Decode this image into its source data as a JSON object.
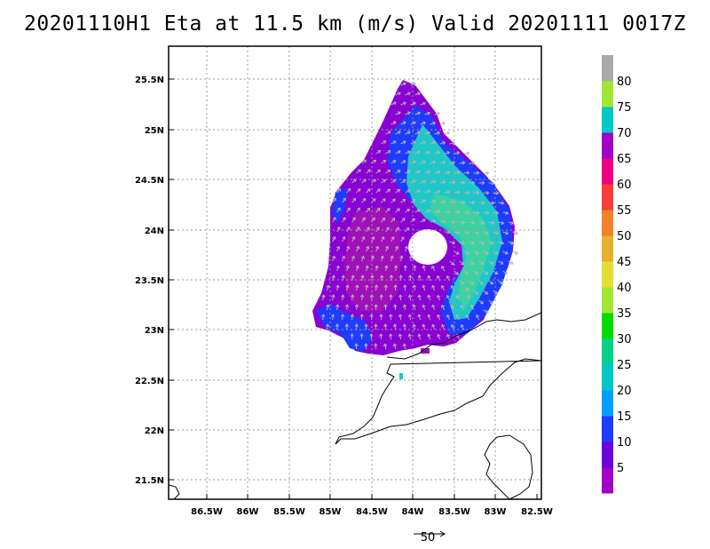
{
  "title": "20201110H1 Eta at 11.5 km (m/s) Valid 20201111 0017Z",
  "lon_labels": [
    "86.5W",
    "86W",
    "85.5W",
    "85W",
    "84.5W",
    "84W",
    "83.5W",
    "83W",
    "82.5W"
  ],
  "lat_labels": [
    "25.5N",
    "25N",
    "24.5N",
    "24N",
    "23.5N",
    "23N",
    "22.5N",
    "22N",
    "21.5N"
  ],
  "colorbar": {
    "labels": [
      "5",
      "10",
      "15",
      "20",
      "25",
      "30",
      "35",
      "40",
      "45",
      "50",
      "55",
      "60",
      "65",
      "70",
      "75",
      "80"
    ],
    "colors": [
      "#a000c8",
      "#6e00dc",
      "#1e3cff",
      "#00a0ff",
      "#00c8c8",
      "#00d28c",
      "#00dc00",
      "#a0e632",
      "#e6dc32",
      "#e6af2d",
      "#f08228",
      "#fa3c3c",
      "#f00082",
      "#a000c8",
      "#00c8c8",
      "#a0e632",
      "#aaaaaa"
    ]
  },
  "reference_vector": {
    "label": "50"
  }
}
